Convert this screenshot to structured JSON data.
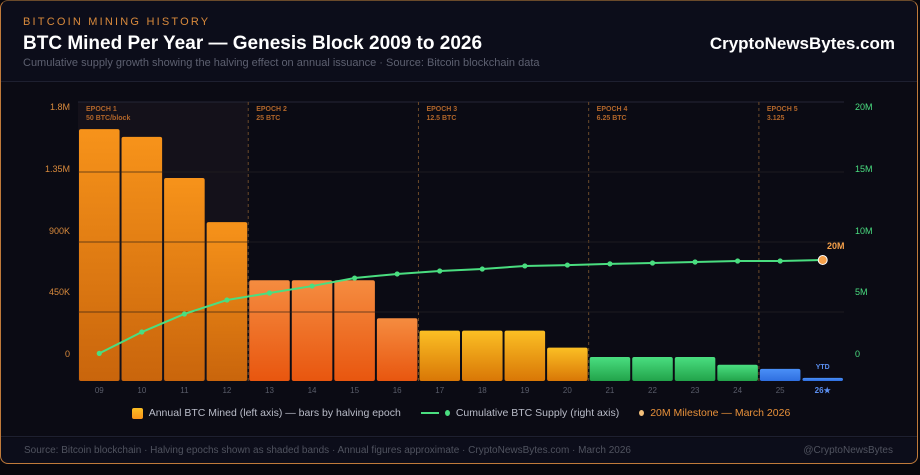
{
  "header": {
    "kicker": "BITCOIN MINING HISTORY",
    "title": "BTC Mined Per Year — Genesis Block 2009 to 2026",
    "subtitle": "Cumulative supply growth showing the halving effect on annual issuance · Source: Bitcoin blockchain data",
    "brand": "CryptoNewsBytes.com"
  },
  "chart_data": {
    "type": "bar+line",
    "categories": [
      "09",
      "10",
      "11",
      "12",
      "13",
      "14",
      "15",
      "16",
      "17",
      "18",
      "19",
      "20",
      "21",
      "22",
      "23",
      "24",
      "25",
      "26★"
    ],
    "series": [
      {
        "name": "Annual BTC Mined (left axis) — bars by halving epoch",
        "axis": "left",
        "type": "bar",
        "values": [
          1625000,
          1575000,
          1310000,
          1025000,
          650000,
          650000,
          650000,
          405000,
          325000,
          325000,
          325000,
          215000,
          155000,
          155000,
          155000,
          105000,
          78000,
          20000
        ]
      },
      {
        "name": "Cumulative BTC Supply (right axis)",
        "axis": "right",
        "type": "line",
        "values": [
          50000,
          1780000,
          3240000,
          4370000,
          4940000,
          5500000,
          6150000,
          6480000,
          6720000,
          6880000,
          7130000,
          7200000,
          7300000,
          7370000,
          7450000,
          7530000,
          7530000,
          7610000
        ]
      }
    ],
    "left_axis": {
      "ticks": [
        "0",
        "450K",
        "900K",
        "1.35M",
        "1.8M"
      ],
      "range": [
        0,
        1800000
      ]
    },
    "right_axis": {
      "ticks": [
        "0",
        "5M",
        "10M",
        "15M",
        "20M"
      ],
      "range": [
        0,
        20000000
      ]
    },
    "epochs": [
      {
        "name": "EPOCH 1",
        "reward": "50 BTC/block",
        "start_index": 0,
        "color": "#f7931a"
      },
      {
        "name": "EPOCH 2",
        "reward": "25 BTC",
        "start_index": 4,
        "color": "#f26b1d"
      },
      {
        "name": "EPOCH 3",
        "reward": "12.5 BTC",
        "start_index": 8,
        "color": "#f5a623"
      },
      {
        "name": "EPOCH 4",
        "reward": "6.25 BTC",
        "start_index": 12,
        "color": "#2fc25f"
      },
      {
        "name": "EPOCH 5",
        "reward": "3.125",
        "start_index": 16,
        "color": "#3b82f6"
      }
    ],
    "annotations": {
      "milestone_label": "20M",
      "ytd_label": "YTD"
    },
    "grid": true,
    "legend_position": "bottom"
  },
  "legend": {
    "bars": "Annual BTC Mined (left axis) — bars by halving epoch",
    "line": "Cumulative BTC Supply (right axis)",
    "milestone": "20M Milestone — March 2026"
  },
  "footer": {
    "source": "Source: Bitcoin blockchain · Halving epochs shown as shaded bands · Annual figures approximate · CryptoNewsBytes.com · March 2026",
    "handle": "@CryptoNewsBytes"
  },
  "colors": {
    "accent": "#f7931a",
    "line": "#4ade80",
    "milestone": "#f5a04a",
    "ytd": "#3b82f6"
  }
}
